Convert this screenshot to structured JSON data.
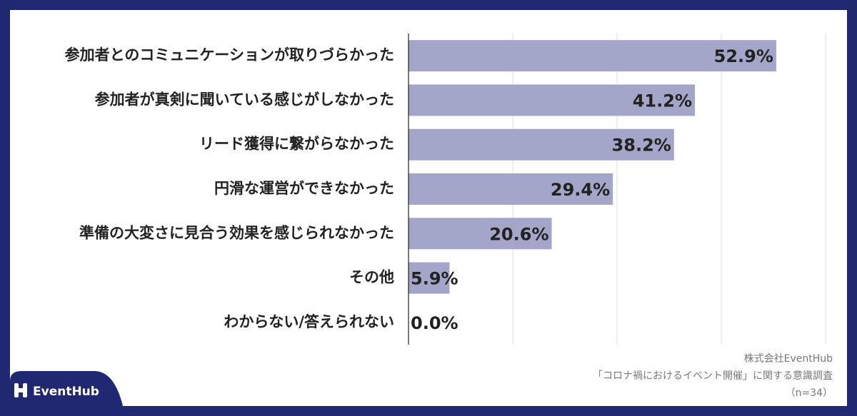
{
  "chart_data": {
    "type": "bar",
    "orientation": "horizontal",
    "categories": [
      "参加者とのコミュニケーションが取りづらかった",
      "参加者が真剣に聞いている感じがしなかった",
      "リード獲得に繋がらなかった",
      "円滑な運営ができなかった",
      "準備の大変さに見合う効果を感じられなかった",
      "その他",
      "わからない/答えられない"
    ],
    "values": [
      52.9,
      41.2,
      38.2,
      29.4,
      20.6,
      5.9,
      0.0
    ],
    "value_labels": [
      "52.9%",
      "41.2%",
      "38.2%",
      "29.4%",
      "20.6%",
      "5.9%",
      "0.0%"
    ],
    "color": "#a3a6c8",
    "xlim": [
      0,
      60
    ],
    "xticks": [
      0,
      15,
      30,
      45,
      60
    ],
    "grid": true
  },
  "source": [
    "株式会社EventHub",
    "「コロナ禍におけるイベント開催」に関する意識調査",
    "（n=34）"
  ],
  "logo": "EventHub"
}
